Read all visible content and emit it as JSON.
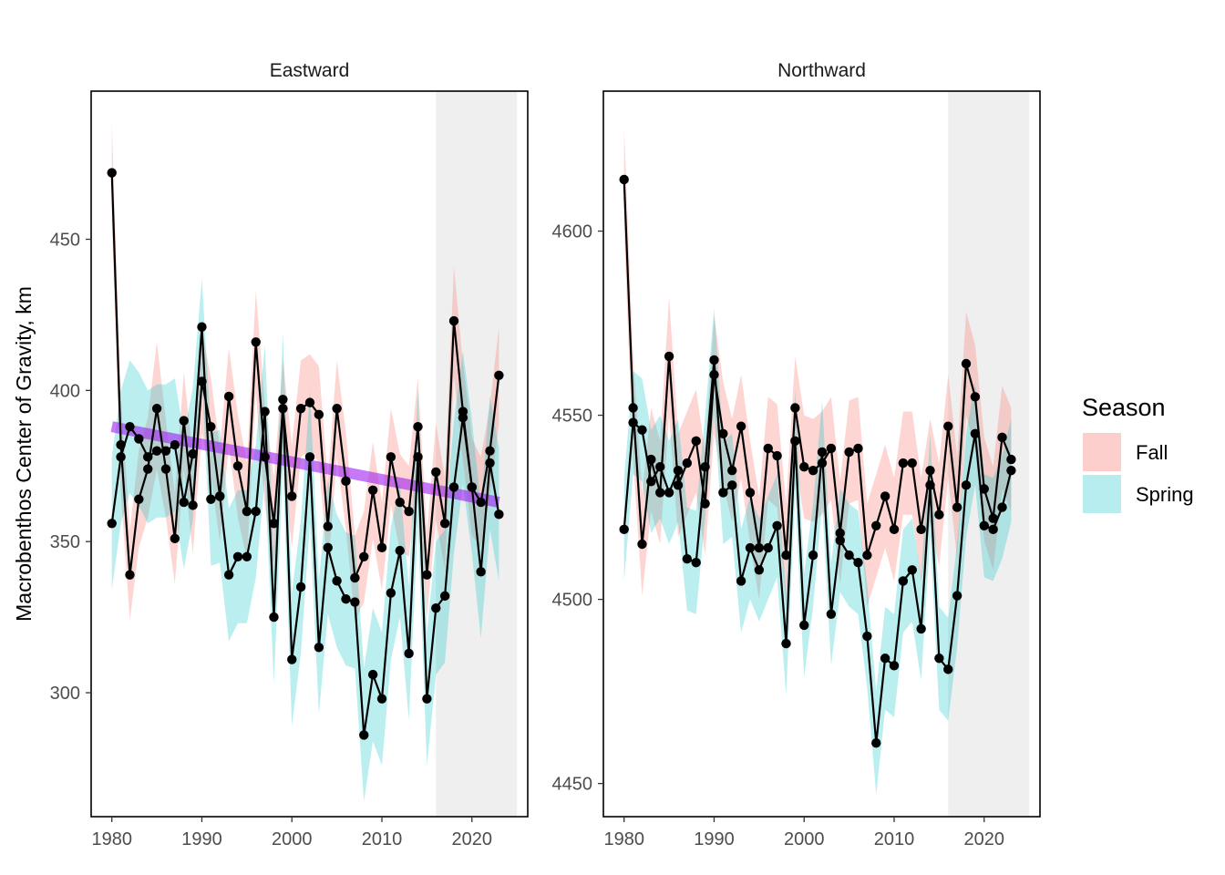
{
  "chart_data": {
    "type": "line",
    "ylabel": "Macrobenthos  Center of Gravity, km",
    "xlabel": "",
    "legend": {
      "title": "Season",
      "placement": "right",
      "entries": [
        {
          "label": "Fall",
          "color": "#F8766D"
        },
        {
          "label": "Spring",
          "color": "#00BFC4"
        }
      ]
    },
    "colors": {
      "fall_ribbon": "#F8766D",
      "spring_ribbon": "#00BFC4",
      "trend": "#A020F0",
      "points": "#000000",
      "shaded_period": "#EBEBEB"
    },
    "grid": false,
    "panels": [
      {
        "title": "Eastward",
        "xlim": [
          1977.7,
          2026.2
        ],
        "ylim": [
          259,
          499
        ],
        "xticks": [
          1980,
          1990,
          2000,
          2010,
          2020
        ],
        "yticks": [
          300,
          350,
          400,
          450
        ],
        "shaded_period": [
          2016,
          2025
        ],
        "trend": {
          "x": [
            1980,
            2023
          ],
          "y": [
            388,
            363
          ]
        },
        "series": [
          {
            "name": "Fall",
            "x": [
              1980,
              1981,
              1982,
              1983,
              1984,
              1985,
              1986,
              1987,
              1988,
              1989,
              1990,
              1991,
              1992,
              1993,
              1994,
              1995,
              1996,
              1997,
              1998,
              1999,
              2000,
              2001,
              2002,
              2003,
              2004,
              2005,
              2006,
              2007,
              2008,
              2009,
              2010,
              2011,
              2012,
              2013,
              2014,
              2015,
              2016,
              2017,
              2018,
              2019,
              2020,
              2021,
              2022,
              2023
            ],
            "y": [
              472,
              382,
              339,
              364,
              374,
              394,
              374,
              351,
              390,
              362,
              403,
              388,
              365,
              398,
              375,
              360,
              416,
              378,
              356,
              394,
              365,
              394,
              396,
              392,
              355,
              394,
              370,
              338,
              345,
              367,
              348,
              378,
              363,
              360,
              388,
              339,
              373,
              356,
              423,
              393,
              368,
              363,
              380,
              405
            ],
            "upper": [
              488,
              398,
              354,
              380,
              391,
              416,
              390,
              366,
              406,
              378,
              420,
              404,
              381,
              414,
              392,
              376,
              433,
              395,
              371,
              410,
              382,
              410,
              412,
              408,
              370,
              410,
              386,
              352,
              360,
              383,
              363,
              394,
              379,
              375,
              404,
              353,
              389,
              371,
              441,
              409,
              384,
              378,
              395,
              421
            ],
            "lower": [
              456,
              366,
              324,
              348,
              358,
              374,
              358,
              336,
              374,
              346,
              386,
              372,
              350,
              382,
              358,
              344,
              399,
              362,
              341,
              378,
              348,
              378,
              380,
              376,
              340,
              378,
              354,
              324,
              330,
              351,
              334,
              362,
              347,
              345,
              372,
              325,
              357,
              341,
              405,
              377,
              352,
              348,
              365,
              389
            ]
          },
          {
            "name": "Spring",
            "x": [
              1980,
              1981,
              1982,
              1983,
              1984,
              1985,
              1986,
              1987,
              1988,
              1989,
              1990,
              1991,
              1992,
              1993,
              1994,
              1995,
              1996,
              1997,
              1998,
              1999,
              2000,
              2001,
              2002,
              2003,
              2004,
              2005,
              2006,
              2007,
              2008,
              2009,
              2010,
              2011,
              2012,
              2013,
              2014,
              2015,
              2016,
              2017,
              2018,
              2019,
              2020,
              2021,
              2022,
              2023
            ],
            "y": [
              356,
              378,
              388,
              384,
              378,
              380,
              380,
              382,
              363,
              379,
              421,
              364,
              365,
              339,
              345,
              345,
              360,
              393,
              325,
              397,
              311,
              335,
              378,
              315,
              348,
              337,
              331,
              330,
              286,
              306,
              298,
              333,
              347,
              313,
              378,
              298,
              328,
              332,
              368,
              391,
              368,
              340,
              376,
              359
            ],
            "upper": [
              378,
              400,
              410,
              406,
              400,
              402,
              402,
              404,
              385,
              401,
              437,
              386,
              387,
              361,
              367,
              367,
              382,
              415,
              347,
              419,
              333,
              357,
              400,
              337,
              370,
              359,
              353,
              352,
              308,
              328,
              320,
              355,
              369,
              335,
              400,
              320,
              350,
              354,
              390,
              413,
              390,
              362,
              398,
              381
            ],
            "lower": [
              334,
              356,
              366,
              362,
              356,
              358,
              358,
              360,
              341,
              357,
              405,
              342,
              343,
              317,
              323,
              323,
              338,
              371,
              303,
              375,
              289,
              313,
              356,
              293,
              326,
              315,
              309,
              308,
              264,
              284,
              276,
              311,
              325,
              291,
              356,
              276,
              306,
              310,
              346,
              369,
              346,
              318,
              354,
              337
            ]
          }
        ]
      },
      {
        "title": "Northward",
        "xlim": [
          1977.7,
          2026.2
        ],
        "ylim": [
          4441,
          4638
        ],
        "xticks": [
          1980,
          1990,
          2000,
          2010,
          2020
        ],
        "yticks": [
          4450,
          4500,
          4550,
          4600
        ],
        "shaded_period": [
          2016,
          2025
        ],
        "series": [
          {
            "name": "Fall",
            "x": [
              1980,
              1981,
              1982,
              1983,
              1984,
              1985,
              1986,
              1987,
              1988,
              1989,
              1990,
              1991,
              1992,
              1993,
              1994,
              1995,
              1996,
              1997,
              1998,
              1999,
              2000,
              2001,
              2002,
              2003,
              2004,
              2005,
              2006,
              2007,
              2008,
              2009,
              2010,
              2011,
              2012,
              2013,
              2014,
              2015,
              2016,
              2017,
              2018,
              2019,
              2020,
              2021,
              2022,
              2023
            ],
            "y": [
              4614,
              4552,
              4515,
              4538,
              4529,
              4566,
              4531,
              4537,
              4543,
              4526,
              4561,
              4545,
              4535,
              4547,
              4529,
              4514,
              4541,
              4539,
              4512,
              4552,
              4536,
              4535,
              4537,
              4541,
              4518,
              4540,
              4541,
              4512,
              4520,
              4528,
              4519,
              4537,
              4537,
              4519,
              4535,
              4523,
              4547,
              4525,
              4564,
              4555,
              4530,
              4522,
              4544,
              4538
            ],
            "upper": [
              4628,
              4566,
              4529,
              4552,
              4543,
              4582,
              4545,
              4551,
              4557,
              4540,
              4577,
              4559,
              4549,
              4561,
              4543,
              4528,
              4555,
              4553,
              4526,
              4566,
              4550,
              4549,
              4551,
              4555,
              4532,
              4554,
              4555,
              4526,
              4534,
              4542,
              4533,
              4551,
              4551,
              4533,
              4549,
              4537,
              4561,
              4539,
              4578,
              4569,
              4544,
              4536,
              4558,
              4552
            ],
            "lower": [
              4600,
              4538,
              4501,
              4524,
              4515,
              4550,
              4517,
              4523,
              4529,
              4512,
              4545,
              4531,
              4521,
              4533,
              4515,
              4500,
              4527,
              4525,
              4498,
              4538,
              4522,
              4521,
              4523,
              4527,
              4504,
              4526,
              4527,
              4498,
              4506,
              4514,
              4505,
              4523,
              4523,
              4505,
              4521,
              4509,
              4533,
              4511,
              4550,
              4541,
              4516,
              4508,
              4530,
              4524
            ]
          },
          {
            "name": "Spring",
            "x": [
              1980,
              1981,
              1982,
              1983,
              1984,
              1985,
              1986,
              1987,
              1988,
              1989,
              1990,
              1991,
              1992,
              1993,
              1994,
              1995,
              1996,
              1997,
              1998,
              1999,
              2000,
              2001,
              2002,
              2003,
              2004,
              2005,
              2006,
              2007,
              2008,
              2009,
              2010,
              2011,
              2012,
              2013,
              2014,
              2015,
              2016,
              2017,
              2018,
              2019,
              2020,
              2021,
              2022,
              2023
            ],
            "y": [
              4519,
              4548,
              4546,
              4532,
              4536,
              4529,
              4535,
              4511,
              4510,
              4536,
              4565,
              4529,
              4531,
              4505,
              4514,
              4508,
              4514,
              4520,
              4488,
              4543,
              4493,
              4512,
              4540,
              4496,
              4516,
              4512,
              4510,
              4490,
              4461,
              4484,
              4482,
              4505,
              4508,
              4492,
              4531,
              4484,
              4481,
              4501,
              4531,
              4545,
              4520,
              4519,
              4525,
              4535
            ],
            "upper": [
              4533,
              4562,
              4560,
              4546,
              4550,
              4543,
              4549,
              4525,
              4524,
              4550,
              4579,
              4543,
              4545,
              4519,
              4528,
              4522,
              4528,
              4534,
              4502,
              4557,
              4507,
              4526,
              4554,
              4510,
              4530,
              4526,
              4524,
              4504,
              4475,
              4498,
              4496,
              4519,
              4522,
              4506,
              4545,
              4498,
              4495,
              4515,
              4545,
              4559,
              4534,
              4533,
              4539,
              4549
            ],
            "lower": [
              4505,
              4534,
              4532,
              4518,
              4522,
              4515,
              4521,
              4497,
              4496,
              4522,
              4551,
              4515,
              4517,
              4491,
              4500,
              4494,
              4500,
              4506,
              4474,
              4529,
              4479,
              4498,
              4526,
              4482,
              4502,
              4498,
              4496,
              4476,
              4447,
              4470,
              4468,
              4491,
              4494,
              4478,
              4517,
              4470,
              4467,
              4487,
              4517,
              4531,
              4506,
              4505,
              4511,
              4521
            ]
          }
        ]
      }
    ]
  }
}
